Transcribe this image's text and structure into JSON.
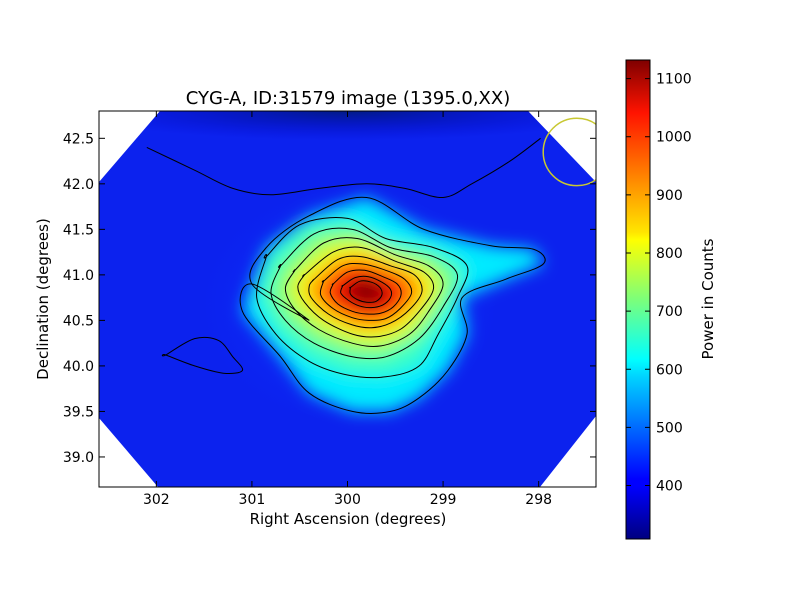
{
  "chart_data": {
    "type": "heatmap",
    "title": "CYG-A, ID:31579 image (1395.0,XX)",
    "xlabel": "Right Ascension (degrees)",
    "ylabel": "Declination (degrees)",
    "xlim": [
      302.6,
      297.4
    ],
    "ylim": [
      38.67,
      42.8
    ],
    "x_ticks": [
      302,
      301,
      300,
      299,
      298
    ],
    "x_tick_labels": [
      "302",
      "301",
      "300",
      "299",
      "298"
    ],
    "y_ticks": [
      39.0,
      39.5,
      40.0,
      40.5,
      41.0,
      41.5,
      42.0,
      42.5
    ],
    "y_tick_labels": [
      "39.0",
      "39.5",
      "40.0",
      "40.5",
      "41.0",
      "41.5",
      "42.0",
      "42.5"
    ],
    "grid": false,
    "colormap": "jet",
    "colorbar": {
      "label": "Power in Counts",
      "range": [
        308,
        1132
      ],
      "ticks": [
        400,
        500,
        600,
        700,
        800,
        900,
        1000,
        1100
      ],
      "tick_labels": [
        "400",
        "500",
        "600",
        "700",
        "800",
        "900",
        "1000",
        "1100"
      ]
    },
    "peak": {
      "ra": 299.8,
      "dec": 40.82,
      "value": 1132
    },
    "background_level": 390,
    "contours": [
      [
        [
          302.1,
          42.4
        ],
        [
          301.6,
          42.15
        ],
        [
          301.2,
          41.95
        ],
        [
          300.8,
          41.88
        ],
        [
          300.3,
          41.95
        ],
        [
          299.8,
          42.0
        ],
        [
          299.4,
          41.95
        ],
        [
          299.0,
          41.85
        ],
        [
          298.7,
          42.0
        ],
        [
          298.3,
          42.25
        ],
        [
          297.98,
          42.5
        ]
      ],
      [
        [
          301.9,
          40.12
        ],
        [
          301.6,
          40.3
        ],
        [
          301.35,
          40.28
        ],
        [
          301.2,
          40.1
        ],
        [
          301.1,
          39.95
        ],
        [
          301.3,
          39.92
        ],
        [
          301.6,
          40.0
        ],
        [
          301.9,
          40.12
        ]
      ],
      [
        [
          300.4,
          40.5
        ],
        [
          301.0,
          40.9
        ],
        [
          301.1,
          40.6
        ],
        [
          300.7,
          40.1
        ],
        [
          300.4,
          39.7
        ],
        [
          299.95,
          39.5
        ],
        [
          299.55,
          39.5
        ],
        [
          299.25,
          39.65
        ],
        [
          298.95,
          39.95
        ],
        [
          298.75,
          40.35
        ],
        [
          298.8,
          40.75
        ],
        [
          298.35,
          40.95
        ],
        [
          297.95,
          41.12
        ],
        [
          298.05,
          41.28
        ],
        [
          298.5,
          41.32
        ],
        [
          299.2,
          41.5
        ],
        [
          299.8,
          41.85
        ],
        [
          300.4,
          41.65
        ],
        [
          300.85,
          41.3
        ],
        [
          301.0,
          40.9
        ]
      ],
      [
        [
          300.85,
          41.2
        ],
        [
          300.5,
          41.55
        ],
        [
          300.0,
          41.62
        ],
        [
          299.6,
          41.4
        ],
        [
          299.1,
          41.3
        ],
        [
          298.75,
          41.1
        ],
        [
          298.85,
          40.75
        ],
        [
          299.05,
          40.35
        ],
        [
          299.25,
          40.0
        ],
        [
          299.6,
          39.88
        ],
        [
          300.0,
          39.9
        ],
        [
          300.4,
          40.05
        ],
        [
          300.75,
          40.35
        ],
        [
          300.95,
          40.75
        ],
        [
          300.85,
          41.2
        ]
      ],
      [
        [
          300.7,
          41.1
        ],
        [
          300.35,
          41.45
        ],
        [
          299.95,
          41.5
        ],
        [
          299.55,
          41.3
        ],
        [
          299.1,
          41.2
        ],
        [
          298.85,
          41.0
        ],
        [
          299.0,
          40.65
        ],
        [
          299.25,
          40.3
        ],
        [
          299.6,
          40.1
        ],
        [
          299.95,
          40.1
        ],
        [
          300.35,
          40.25
        ],
        [
          300.65,
          40.5
        ],
        [
          300.8,
          40.8
        ],
        [
          300.7,
          41.1
        ]
      ],
      [
        [
          300.55,
          41.05
        ],
        [
          300.25,
          41.35
        ],
        [
          299.9,
          41.4
        ],
        [
          299.5,
          41.22
        ],
        [
          299.15,
          41.1
        ],
        [
          299.0,
          40.9
        ],
        [
          299.15,
          40.6
        ],
        [
          299.35,
          40.35
        ],
        [
          299.65,
          40.22
        ],
        [
          299.95,
          40.25
        ],
        [
          300.3,
          40.4
        ],
        [
          300.55,
          40.62
        ],
        [
          300.65,
          40.85
        ],
        [
          300.55,
          41.05
        ]
      ],
      [
        [
          300.45,
          41.0
        ],
        [
          300.15,
          41.25
        ],
        [
          299.85,
          41.3
        ],
        [
          299.5,
          41.15
        ],
        [
          299.2,
          41.03
        ],
        [
          299.1,
          40.85
        ],
        [
          299.25,
          40.6
        ],
        [
          299.45,
          40.4
        ],
        [
          299.7,
          40.32
        ],
        [
          299.95,
          40.35
        ],
        [
          300.25,
          40.5
        ],
        [
          300.45,
          40.7
        ],
        [
          300.52,
          40.87
        ],
        [
          300.45,
          41.0
        ]
      ],
      [
        [
          300.35,
          40.95
        ],
        [
          300.1,
          41.17
        ],
        [
          299.85,
          41.2
        ],
        [
          299.55,
          41.1
        ],
        [
          299.3,
          41.0
        ],
        [
          299.22,
          40.82
        ],
        [
          299.35,
          40.62
        ],
        [
          299.55,
          40.47
        ],
        [
          299.75,
          40.42
        ],
        [
          299.95,
          40.45
        ],
        [
          300.2,
          40.57
        ],
        [
          300.38,
          40.75
        ],
        [
          300.4,
          40.88
        ],
        [
          300.35,
          40.95
        ]
      ],
      [
        [
          300.25,
          40.93
        ],
        [
          300.05,
          41.1
        ],
        [
          299.85,
          41.12
        ],
        [
          299.6,
          41.05
        ],
        [
          299.4,
          40.95
        ],
        [
          299.33,
          40.8
        ],
        [
          299.45,
          40.63
        ],
        [
          299.6,
          40.52
        ],
        [
          299.78,
          40.5
        ],
        [
          299.95,
          40.53
        ],
        [
          300.15,
          40.63
        ],
        [
          300.28,
          40.78
        ],
        [
          300.25,
          40.93
        ]
      ],
      [
        [
          300.15,
          40.9
        ],
        [
          300.0,
          41.03
        ],
        [
          299.82,
          41.05
        ],
        [
          299.63,
          40.98
        ],
        [
          299.48,
          40.9
        ],
        [
          299.44,
          40.78
        ],
        [
          299.52,
          40.65
        ],
        [
          299.65,
          40.58
        ],
        [
          299.8,
          40.57
        ],
        [
          299.95,
          40.6
        ],
        [
          300.1,
          40.68
        ],
        [
          300.18,
          40.8
        ],
        [
          300.15,
          40.9
        ]
      ],
      [
        [
          300.05,
          40.88
        ],
        [
          299.92,
          40.97
        ],
        [
          299.78,
          40.98
        ],
        [
          299.64,
          40.92
        ],
        [
          299.55,
          40.84
        ],
        [
          299.55,
          40.75
        ],
        [
          299.63,
          40.67
        ],
        [
          299.75,
          40.64
        ],
        [
          299.88,
          40.66
        ],
        [
          299.99,
          40.72
        ],
        [
          300.07,
          40.8
        ],
        [
          300.05,
          40.88
        ]
      ],
      [
        [
          299.97,
          40.86
        ],
        [
          299.87,
          40.93
        ],
        [
          299.75,
          40.92
        ],
        [
          299.66,
          40.86
        ],
        [
          299.64,
          40.78
        ],
        [
          299.7,
          40.71
        ],
        [
          299.8,
          40.7
        ],
        [
          299.9,
          40.73
        ],
        [
          299.97,
          40.79
        ],
        [
          299.97,
          40.86
        ]
      ]
    ],
    "beam_marker": {
      "ra": 297.6,
      "dec": 42.35,
      "radius_deg": 0.37,
      "color": "#c8c832"
    }
  }
}
